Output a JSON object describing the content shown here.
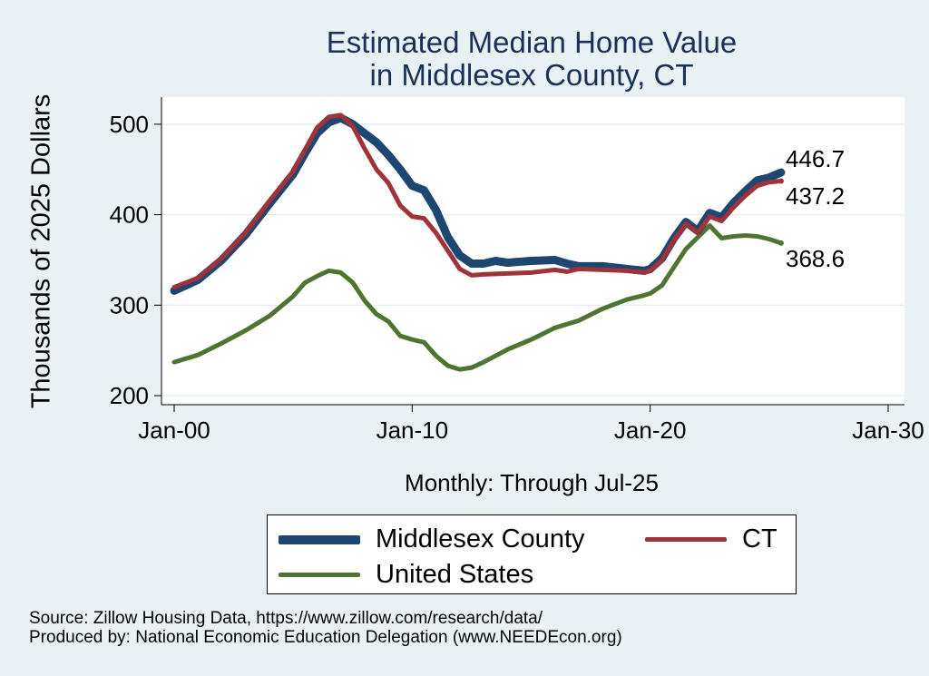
{
  "chart_data": {
    "type": "line",
    "title": [
      "Estimated Median Home Value",
      "in Middlesex County, CT"
    ],
    "ylabel": "Thousands of 2025 Dollars",
    "xlabel": "Monthly: Through Jul-25",
    "ylim": [
      190,
      530
    ],
    "xlim": [
      2000,
      2030
    ],
    "y_ticks": [
      200,
      300,
      400,
      500
    ],
    "x_ticks": [
      {
        "value": 2000,
        "label": "Jan-00"
      },
      {
        "value": 2010,
        "label": "Jan-10"
      },
      {
        "value": 2020,
        "label": "Jan-20"
      },
      {
        "value": 2030,
        "label": "Jan-30"
      }
    ],
    "grid": true,
    "series": [
      {
        "name": "Middlesex County",
        "color": "#1d4670",
        "end_label": "446.7",
        "points": [
          [
            2000.0,
            316
          ],
          [
            2001.0,
            328
          ],
          [
            2002.0,
            350
          ],
          [
            2003.0,
            378
          ],
          [
            2004.0,
            412
          ],
          [
            2005.0,
            445
          ],
          [
            2005.5,
            468
          ],
          [
            2006.0,
            490
          ],
          [
            2006.5,
            502
          ],
          [
            2007.0,
            507
          ],
          [
            2007.5,
            500
          ],
          [
            2008.0,
            490
          ],
          [
            2008.5,
            480
          ],
          [
            2009.0,
            466
          ],
          [
            2009.5,
            450
          ],
          [
            2010.0,
            432
          ],
          [
            2010.5,
            427
          ],
          [
            2011.0,
            405
          ],
          [
            2011.5,
            375
          ],
          [
            2012.0,
            355
          ],
          [
            2012.5,
            346
          ],
          [
            2013.0,
            346
          ],
          [
            2013.5,
            349
          ],
          [
            2014.0,
            347
          ],
          [
            2015.0,
            349
          ],
          [
            2016.0,
            350
          ],
          [
            2016.5,
            346
          ],
          [
            2017.0,
            343
          ],
          [
            2018.0,
            343
          ],
          [
            2019.0,
            340
          ],
          [
            2019.75,
            338
          ],
          [
            2020.0,
            340
          ],
          [
            2020.5,
            352
          ],
          [
            2021.0,
            374
          ],
          [
            2021.5,
            392
          ],
          [
            2022.0,
            382
          ],
          [
            2022.5,
            402
          ],
          [
            2023.0,
            397
          ],
          [
            2023.5,
            413
          ],
          [
            2024.0,
            426
          ],
          [
            2024.5,
            438
          ],
          [
            2025.0,
            441
          ],
          [
            2025.5,
            446.7
          ]
        ]
      },
      {
        "name": "CT",
        "color": "#a0323a",
        "end_label": "437.2",
        "points": [
          [
            2000.0,
            320
          ],
          [
            2001.0,
            330
          ],
          [
            2002.0,
            352
          ],
          [
            2003.0,
            380
          ],
          [
            2004.0,
            415
          ],
          [
            2005.0,
            448
          ],
          [
            2005.5,
            472
          ],
          [
            2006.0,
            496
          ],
          [
            2006.5,
            508
          ],
          [
            2007.0,
            510
          ],
          [
            2007.5,
            498
          ],
          [
            2008.0,
            473
          ],
          [
            2008.5,
            450
          ],
          [
            2009.0,
            435
          ],
          [
            2009.5,
            410
          ],
          [
            2010.0,
            398
          ],
          [
            2010.5,
            396
          ],
          [
            2011.0,
            380
          ],
          [
            2011.5,
            360
          ],
          [
            2012.0,
            340
          ],
          [
            2012.5,
            333
          ],
          [
            2013.0,
            334
          ],
          [
            2014.0,
            335
          ],
          [
            2015.0,
            336
          ],
          [
            2016.0,
            339
          ],
          [
            2016.5,
            337
          ],
          [
            2017.0,
            340
          ],
          [
            2018.0,
            339
          ],
          [
            2019.0,
            338
          ],
          [
            2019.75,
            336
          ],
          [
            2020.0,
            338
          ],
          [
            2020.5,
            350
          ],
          [
            2021.0,
            372
          ],
          [
            2021.5,
            390
          ],
          [
            2022.0,
            380
          ],
          [
            2022.5,
            398
          ],
          [
            2023.0,
            393
          ],
          [
            2023.5,
            408
          ],
          [
            2024.0,
            421
          ],
          [
            2024.5,
            432
          ],
          [
            2025.0,
            436
          ],
          [
            2025.5,
            437.2
          ]
        ]
      },
      {
        "name": "United States",
        "color": "#4e7431",
        "end_label": "368.6",
        "points": [
          [
            2000.0,
            237
          ],
          [
            2001.0,
            245
          ],
          [
            2002.0,
            258
          ],
          [
            2003.0,
            272
          ],
          [
            2004.0,
            288
          ],
          [
            2005.0,
            310
          ],
          [
            2005.5,
            325
          ],
          [
            2006.0,
            332
          ],
          [
            2006.5,
            338
          ],
          [
            2007.0,
            336
          ],
          [
            2007.5,
            325
          ],
          [
            2008.0,
            305
          ],
          [
            2008.5,
            290
          ],
          [
            2009.0,
            282
          ],
          [
            2009.5,
            266
          ],
          [
            2010.0,
            262
          ],
          [
            2010.5,
            259
          ],
          [
            2011.0,
            244
          ],
          [
            2011.5,
            233
          ],
          [
            2012.0,
            229
          ],
          [
            2012.5,
            231
          ],
          [
            2013.0,
            237
          ],
          [
            2013.5,
            244
          ],
          [
            2014.0,
            251
          ],
          [
            2015.0,
            262
          ],
          [
            2016.0,
            275
          ],
          [
            2017.0,
            283
          ],
          [
            2018.0,
            296
          ],
          [
            2019.0,
            306
          ],
          [
            2019.75,
            311
          ],
          [
            2020.0,
            313
          ],
          [
            2020.5,
            322
          ],
          [
            2021.0,
            342
          ],
          [
            2021.5,
            362
          ],
          [
            2022.0,
            375
          ],
          [
            2022.5,
            388
          ],
          [
            2023.0,
            374
          ],
          [
            2023.5,
            376
          ],
          [
            2024.0,
            377
          ],
          [
            2024.5,
            376
          ],
          [
            2025.0,
            373
          ],
          [
            2025.5,
            368.6
          ]
        ]
      }
    ]
  },
  "legend": {
    "items": [
      {
        "label": "Middlesex County",
        "color": "#1d4670"
      },
      {
        "label": "CT",
        "color": "#a0323a"
      },
      {
        "label": "United States",
        "color": "#4e7431"
      }
    ]
  },
  "footer": {
    "source": "Source: Zillow Housing Data, https://www.zillow.com/research/data/",
    "produced_by": "Produced by: National Economic Education Delegation (www.NEEDEcon.org)"
  }
}
